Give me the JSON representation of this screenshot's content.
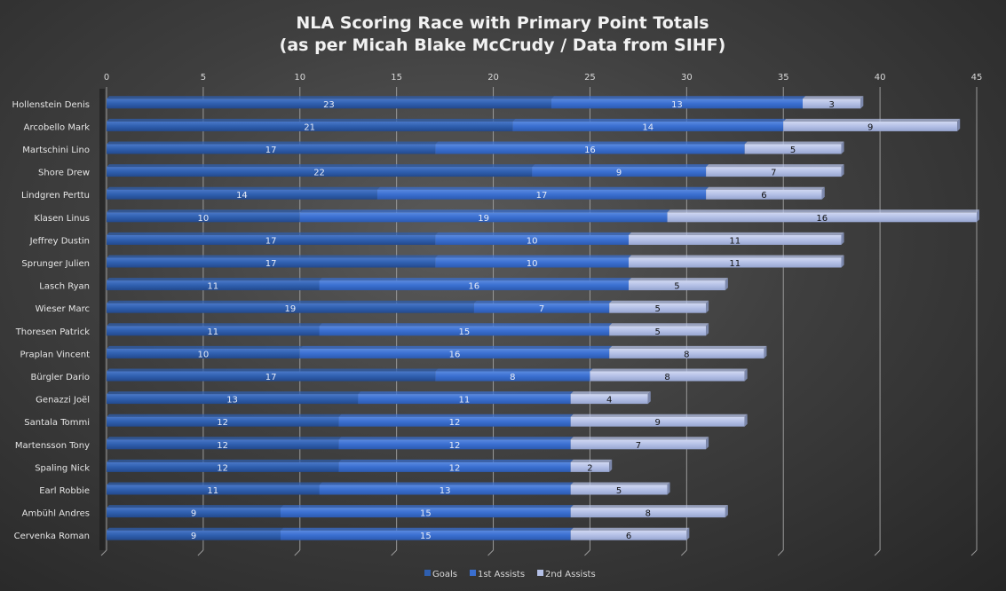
{
  "chart_data": {
    "type": "bar",
    "orientation": "horizontal",
    "stacked": true,
    "title": "NLA Scoring Race with Primary Point Totals",
    "subtitle": "(as per Micah Blake McCrudy / Data from SIHF)",
    "xlabel": "",
    "ylabel": "",
    "xlim": [
      0,
      45
    ],
    "xticks": [
      0,
      5,
      10,
      15,
      20,
      25,
      30,
      35,
      40,
      45
    ],
    "grid": true,
    "legend_position": "bottom",
    "categories": [
      "Hollenstein Denis",
      "Arcobello Mark",
      "Martschini Lino",
      "Shore Drew",
      "Lindgren Perttu",
      "Klasen Linus",
      "Jeffrey Dustin",
      "Sprunger Julien",
      "Lasch Ryan",
      "Wieser Marc",
      "Thoresen Patrick",
      "Praplan Vincent",
      "Bürgler Dario",
      "Genazzi Joël",
      "Santala Tommi",
      "Martensson Tony",
      "Spaling Nick",
      "Earl Robbie",
      "Ambühl Andres",
      "Cervenka Roman"
    ],
    "series": [
      {
        "name": "Goals",
        "color": "#2f5faf",
        "values": [
          23,
          21,
          17,
          22,
          14,
          10,
          17,
          17,
          11,
          19,
          11,
          10,
          17,
          13,
          12,
          12,
          12,
          11,
          9,
          9
        ]
      },
      {
        "name": "1st Assists",
        "color": "#3a6fd0",
        "values": [
          13,
          14,
          16,
          9,
          17,
          19,
          10,
          10,
          16,
          7,
          15,
          16,
          8,
          11,
          12,
          12,
          12,
          13,
          15,
          15
        ]
      },
      {
        "name": "2nd Assists",
        "color": "#b4c0e6",
        "values": [
          3,
          9,
          5,
          7,
          6,
          16,
          11,
          11,
          5,
          5,
          5,
          8,
          8,
          4,
          9,
          7,
          2,
          5,
          8,
          6
        ]
      }
    ]
  }
}
